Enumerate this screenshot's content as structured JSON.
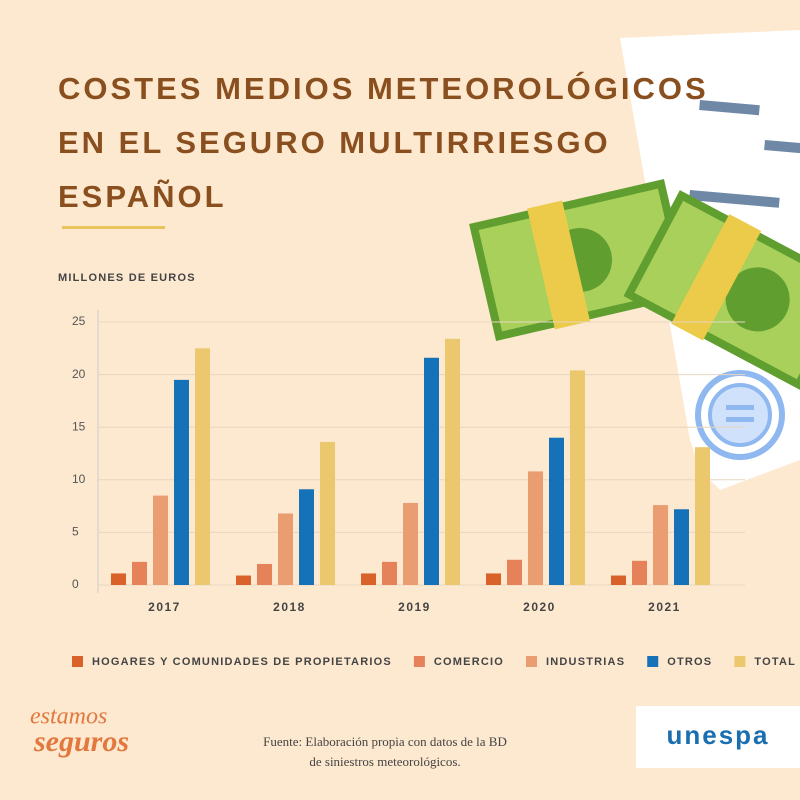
{
  "chart_data": {
    "type": "bar",
    "title": "COSTES MEDIOS METEOROLÓGICOS EN EL SEGURO MULTIRRIESGO ESPAÑOL",
    "y_label": "MILLONES DE EUROS",
    "categories": [
      "2017",
      "2018",
      "2019",
      "2020",
      "2021"
    ],
    "series": [
      {
        "name": "HOGARES Y COMUNIDADES DE PROPIETARIOS",
        "color": "#d9622b",
        "values": [
          1.1,
          0.9,
          1.1,
          1.1,
          0.9
        ]
      },
      {
        "name": "COMERCIO",
        "color": "#e6825a",
        "values": [
          2.2,
          2.0,
          2.2,
          2.4,
          2.3
        ]
      },
      {
        "name": "INDUSTRIAS",
        "color": "#eb9d72",
        "values": [
          8.5,
          6.8,
          7.8,
          10.8,
          7.6
        ]
      },
      {
        "name": "OTROS",
        "color": "#1571b8",
        "values": [
          19.5,
          9.1,
          21.6,
          14.0,
          7.2
        ]
      },
      {
        "name": "TOTAL",
        "color": "#ebc76d",
        "values": [
          22.5,
          13.6,
          23.4,
          20.4,
          13.1
        ]
      }
    ],
    "ylim": [
      0,
      25
    ],
    "yticks": [
      0,
      5,
      10,
      15,
      20,
      25
    ],
    "grid": true
  },
  "footer": {
    "source": [
      "Fuente: Elaboración propia con datos de la BD",
      "de siniestros meteorológicos."
    ],
    "brand_left": [
      "estamos",
      "seguros"
    ],
    "brand_right": "unespa"
  }
}
